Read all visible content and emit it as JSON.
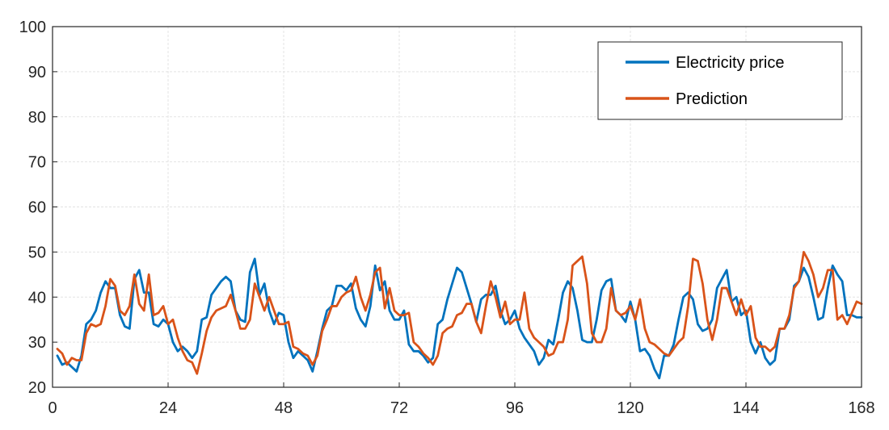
{
  "chart_data": {
    "type": "line",
    "title": "",
    "xlabel": "",
    "ylabel": "",
    "xlim": [
      0,
      168
    ],
    "ylim": [
      20,
      100
    ],
    "xticks": [
      0,
      24,
      48,
      72,
      96,
      120,
      144,
      168
    ],
    "yticks": [
      20,
      30,
      40,
      50,
      60,
      70,
      80,
      90,
      100
    ],
    "grid": true,
    "legend_position": "top-right",
    "series": [
      {
        "name": "Electricity price",
        "color": "#0072BD",
        "x": [
          1,
          2,
          3,
          4,
          5,
          6,
          7,
          8,
          9,
          10,
          11,
          12,
          13,
          14,
          15,
          16,
          17,
          18,
          19,
          20,
          21,
          22,
          23,
          24,
          25,
          26,
          27,
          28,
          29,
          30,
          31,
          32,
          33,
          34,
          35,
          36,
          37,
          38,
          39,
          40,
          41,
          42,
          43,
          44,
          45,
          46,
          47,
          48,
          49,
          50,
          51,
          52,
          53,
          54,
          55,
          56,
          57,
          58,
          59,
          60,
          61,
          62,
          63,
          64,
          65,
          66,
          67,
          68,
          69,
          70,
          71,
          72,
          73,
          74,
          75,
          76,
          77,
          78,
          79,
          80,
          81,
          82,
          83,
          84,
          85,
          86,
          87,
          88,
          89,
          90,
          91,
          92,
          93,
          94,
          95,
          96,
          97,
          98,
          99,
          100,
          101,
          102,
          103,
          104,
          105,
          106,
          107,
          108,
          109,
          110,
          111,
          112,
          113,
          114,
          115,
          116,
          117,
          118,
          119,
          120,
          121,
          122,
          123,
          124,
          125,
          126,
          127,
          128,
          129,
          130,
          131,
          132,
          133,
          134,
          135,
          136,
          137,
          138,
          139,
          140,
          141,
          142,
          143,
          144,
          145,
          146,
          147,
          148,
          149,
          150,
          151,
          152,
          153,
          154,
          155,
          156,
          157,
          158,
          159,
          160,
          161,
          162,
          163,
          164,
          165,
          166,
          167,
          168
        ],
        "values": [
          27,
          25,
          25.5,
          24.5,
          23.5,
          27,
          34,
          35,
          37,
          41,
          43.5,
          42,
          42,
          36,
          33.5,
          33,
          44,
          46,
          41,
          41,
          34,
          33.5,
          35,
          34,
          30,
          28,
          29,
          28,
          26.5,
          28,
          35,
          35.5,
          40.5,
          42,
          43.5,
          44.5,
          43.5,
          37,
          35,
          34.5,
          45.5,
          48.5,
          40.5,
          43,
          37,
          34,
          36.5,
          36,
          30,
          26.5,
          28,
          27,
          26,
          23.5,
          28,
          33,
          37,
          38,
          42.5,
          42.5,
          41.5,
          43,
          37.5,
          35,
          33.5,
          38,
          47,
          41.5,
          43.5,
          37,
          35,
          35,
          37,
          29.5,
          28,
          28,
          27,
          25.5,
          26.5,
          34,
          35,
          39.5,
          43,
          46.5,
          45.5,
          42,
          38.5,
          34.5,
          39.5,
          40.5,
          40.5,
          42.5,
          37,
          34,
          35,
          37,
          33,
          31,
          29.5,
          28,
          25,
          26.5,
          30.5,
          29.5,
          35,
          41,
          43.5,
          42,
          37,
          30.5,
          30,
          30,
          35,
          41.5,
          43.5,
          44,
          37,
          36,
          34.5,
          39,
          35,
          28,
          28.5,
          27,
          24,
          22,
          27,
          27,
          29.5,
          35,
          40,
          41,
          39.5,
          34,
          32.5,
          33,
          35,
          42,
          44,
          46,
          39,
          40,
          36,
          37,
          30,
          27.5,
          30,
          26.5,
          25,
          26,
          33,
          33,
          35,
          42.5,
          43.5,
          46.5,
          44.5,
          40,
          35,
          35.5,
          42,
          47,
          45,
          43.5,
          36,
          36,
          35.5,
          35.5
        ]
      },
      {
        "name": "Prediction",
        "color": "#D95319",
        "x": [
          1,
          2,
          3,
          4,
          5,
          6,
          7,
          8,
          9,
          10,
          11,
          12,
          13,
          14,
          15,
          16,
          17,
          18,
          19,
          20,
          21,
          22,
          23,
          24,
          25,
          26,
          27,
          28,
          29,
          30,
          31,
          32,
          33,
          34,
          35,
          36,
          37,
          38,
          39,
          40,
          41,
          42,
          43,
          44,
          45,
          46,
          47,
          48,
          49,
          50,
          51,
          52,
          53,
          54,
          55,
          56,
          57,
          58,
          59,
          60,
          61,
          62,
          63,
          64,
          65,
          66,
          67,
          68,
          69,
          70,
          71,
          72,
          73,
          74,
          75,
          76,
          77,
          78,
          79,
          80,
          81,
          82,
          83,
          84,
          85,
          86,
          87,
          88,
          89,
          90,
          91,
          92,
          93,
          94,
          95,
          96,
          97,
          98,
          99,
          100,
          101,
          102,
          103,
          104,
          105,
          106,
          107,
          108,
          109,
          110,
          111,
          112,
          113,
          114,
          115,
          116,
          117,
          118,
          119,
          120,
          121,
          122,
          123,
          124,
          125,
          126,
          127,
          128,
          129,
          130,
          131,
          132,
          133,
          134,
          135,
          136,
          137,
          138,
          139,
          140,
          141,
          142,
          143,
          144,
          145,
          146,
          147,
          148,
          149,
          150,
          151,
          152,
          153,
          154,
          155,
          156,
          157,
          158,
          159,
          160,
          161,
          162,
          163,
          164,
          165,
          166,
          167,
          168
        ],
        "values": [
          28.5,
          27.5,
          25,
          26.5,
          26,
          26,
          32,
          34,
          33.5,
          34,
          38,
          44,
          42.5,
          37,
          36,
          38,
          45,
          38.5,
          37,
          45,
          36,
          36.5,
          38,
          34,
          35,
          31,
          28,
          26,
          25.5,
          23,
          27.5,
          32.5,
          35.5,
          37,
          37.5,
          38,
          40.5,
          37,
          33,
          33,
          35,
          43,
          40,
          37,
          40,
          37,
          34,
          34,
          34.5,
          29,
          28.5,
          27.5,
          27,
          25,
          27,
          32.5,
          35,
          38,
          38,
          40,
          41,
          41.5,
          44.5,
          40,
          37,
          40.5,
          45.5,
          46.5,
          37.5,
          42,
          37,
          36,
          36,
          36.5,
          30,
          29,
          27.5,
          26.5,
          25,
          27,
          32,
          33,
          33.5,
          36,
          36.5,
          38.5,
          38.5,
          34.5,
          32,
          38,
          43.5,
          40,
          35.5,
          39,
          34,
          35,
          35,
          41,
          33,
          31,
          30,
          29,
          27,
          27.5,
          30,
          30,
          35,
          47,
          48,
          49,
          43,
          32,
          30,
          30,
          33,
          42,
          37,
          36,
          36.5,
          38,
          35,
          39.5,
          33,
          30,
          29.5,
          28.5,
          27.5,
          27,
          28.5,
          30,
          31,
          38,
          48.5,
          48,
          43,
          35,
          30.5,
          35,
          42,
          42,
          39,
          36,
          39.5,
          36,
          38,
          31,
          29,
          29,
          28,
          29,
          33,
          33,
          36,
          42,
          43.5,
          50,
          48,
          45,
          40,
          42,
          46,
          46,
          35,
          36,
          34,
          36.5,
          39,
          38.5
        ]
      }
    ]
  }
}
